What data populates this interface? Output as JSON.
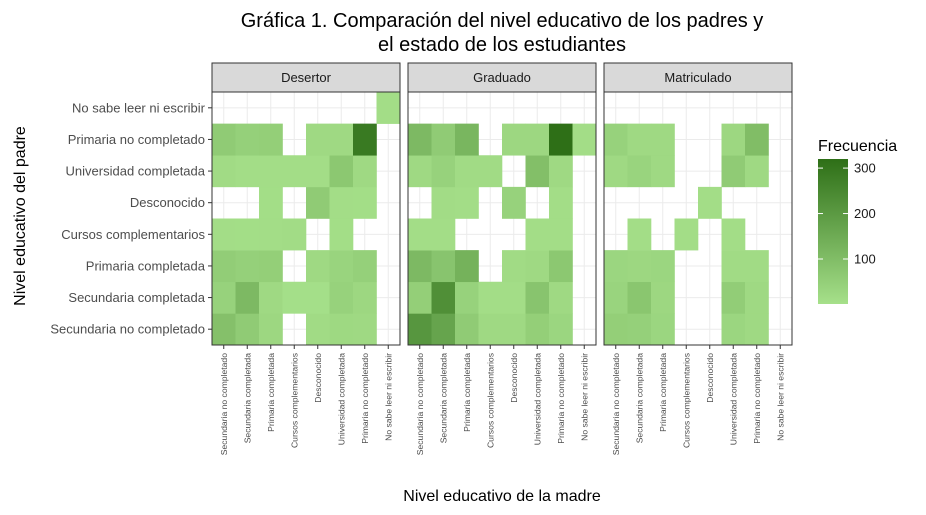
{
  "chart_data": {
    "type": "heatmap",
    "title_lines": [
      "Gráfica 1. Comparación del nivel educativo de los padres y",
      "el estado de los estudiantes"
    ],
    "xlabel": "Nivel educativo de la madre",
    "ylabel": "Nivel educativo del padre",
    "facets": [
      "Desertor",
      "Graduado",
      "Matriculado"
    ],
    "x_categories": [
      "Secundaria no completado",
      "Secundaria completada",
      "Primaria completada",
      "Cursos complementarios",
      "Desconocido",
      "Universidad completada",
      "Primaria no completado",
      "No sabe leer ni escribir"
    ],
    "y_categories": [
      "Secundaria no completado",
      "Secundaria completada",
      "Primaria completada",
      "Cursos complementarios",
      "Desconocido",
      "Universidad completada",
      "Primaria no completado",
      "No sabe leer ni escribir"
    ],
    "legend": {
      "title": "Frecuencia",
      "ticks": [
        100,
        200,
        300
      ],
      "min": 1,
      "max": 320,
      "color_low": "#a6e08a",
      "color_high": "#2e6f17",
      "position": "right"
    },
    "grid": true,
    "panels": [
      {
        "name": "Desertor",
        "rows": [
          [
            90,
            60,
            25,
            null,
            15,
            22,
            20,
            null
          ],
          [
            40,
            110,
            20,
            5,
            5,
            40,
            25,
            null
          ],
          [
            55,
            45,
            50,
            null,
            20,
            35,
            45,
            null
          ],
          [
            10,
            8,
            10,
            12,
            null,
            8,
            null,
            null
          ],
          [
            null,
            null,
            8,
            null,
            60,
            10,
            8,
            null
          ],
          [
            15,
            10,
            10,
            10,
            10,
            70,
            20,
            null
          ],
          [
            60,
            45,
            50,
            null,
            20,
            20,
            290,
            null
          ],
          [
            null,
            null,
            null,
            null,
            null,
            null,
            null,
            10
          ]
        ]
      },
      {
        "name": "Graduado",
        "rows": [
          [
            210,
            170,
            60,
            20,
            20,
            50,
            30,
            null
          ],
          [
            50,
            230,
            40,
            10,
            10,
            80,
            20,
            null
          ],
          [
            110,
            80,
            130,
            null,
            15,
            20,
            70,
            null
          ],
          [
            10,
            10,
            null,
            null,
            null,
            10,
            10,
            null
          ],
          [
            null,
            12,
            10,
            null,
            40,
            null,
            10,
            null
          ],
          [
            20,
            40,
            15,
            15,
            null,
            95,
            20,
            null
          ],
          [
            110,
            60,
            120,
            null,
            25,
            25,
            320,
            10
          ],
          [
            null,
            null,
            null,
            null,
            null,
            null,
            null,
            null
          ]
        ]
      },
      {
        "name": "Matriculado",
        "rows": [
          [
            50,
            45,
            30,
            null,
            null,
            30,
            20,
            null
          ],
          [
            35,
            75,
            25,
            null,
            null,
            55,
            20,
            null
          ],
          [
            30,
            25,
            30,
            null,
            null,
            15,
            15,
            null
          ],
          [
            null,
            10,
            null,
            10,
            null,
            10,
            null,
            null
          ],
          [
            null,
            null,
            null,
            null,
            10,
            null,
            null,
            null
          ],
          [
            20,
            35,
            20,
            null,
            null,
            60,
            20,
            null
          ],
          [
            40,
            20,
            20,
            null,
            null,
            25,
            100,
            null
          ],
          [
            null,
            null,
            null,
            null,
            null,
            null,
            null,
            null
          ]
        ]
      }
    ]
  }
}
